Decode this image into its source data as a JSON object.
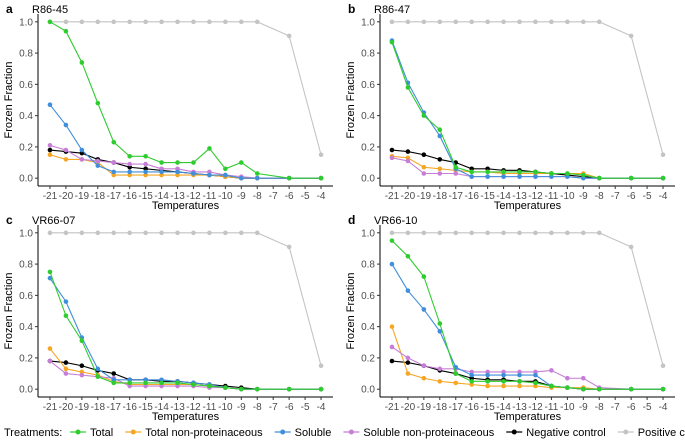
{
  "chart_data": {
    "type": "line",
    "xlabel": "Temperatures",
    "ylabel": "Frozen Fraction",
    "x": [
      -21,
      -20,
      -19,
      -18,
      -17,
      -16,
      -15,
      -14,
      -13,
      -12,
      -11,
      -10,
      -9,
      -8,
      -7,
      -6,
      -5,
      -4
    ],
    "x_tick_labels": [
      "-21",
      "-20",
      "-19",
      "-18",
      "-17",
      "-16",
      "-15",
      "-14",
      "-13",
      "-12",
      "-11",
      "-10",
      "-9",
      "-8",
      "-7",
      "-6",
      "-5",
      "-4"
    ],
    "y_ticks": [
      "0.0",
      "0.2",
      "0.4",
      "0.6",
      "0.8",
      "1.0"
    ],
    "ylim": [
      0,
      1
    ],
    "legend": {
      "title": "Treatments:",
      "placement": "bottom",
      "entries": [
        {
          "name": "Total",
          "color": "#2ecc2e"
        },
        {
          "name": "Total non-proteinaceous",
          "color": "#f5a623"
        },
        {
          "name": "Soluble",
          "color": "#3f8fdc"
        },
        {
          "name": "Soluble non-proteinaceous",
          "color": "#c77ed6"
        },
        {
          "name": "Negative control",
          "color": "#000000"
        },
        {
          "name": "Positive control",
          "color": "#c4c4c4"
        }
      ]
    },
    "panels": [
      {
        "letter": "a",
        "title": "R86-45",
        "series": [
          {
            "name": "Positive control",
            "x": [
              -21,
              -20,
              -19,
              -18,
              -17,
              -16,
              -15,
              -14,
              -13,
              -12,
              -11,
              -10,
              -9,
              -8,
              -6,
              -4
            ],
            "values": [
              1,
              1,
              1,
              1,
              1,
              1,
              1,
              1,
              1,
              1,
              1,
              1,
              1,
              1,
              0.91,
              0.15
            ]
          },
          {
            "name": "Negative control",
            "x": [
              -21,
              -20,
              -19,
              -18,
              -17,
              -16,
              -15,
              -14,
              -13,
              -12,
              -11,
              -10,
              -9,
              -8,
              -6,
              -4
            ],
            "values": [
              0.18,
              0.17,
              0.16,
              0.12,
              0.1,
              0.07,
              0.06,
              0.05,
              0.04,
              0.03,
              0.02,
              0.01,
              0,
              0,
              0,
              0
            ]
          },
          {
            "name": "Total non-proteinaceous",
            "x": [
              -21,
              -20,
              -19,
              -18,
              -17,
              -16,
              -15,
              -14,
              -13,
              -12,
              -11,
              -10,
              -9,
              -8,
              -6,
              -4
            ],
            "values": [
              0.15,
              0.12,
              0.12,
              0.1,
              0.02,
              0.02,
              0.02,
              0.02,
              0.02,
              0.02,
              0.02,
              0.01,
              0,
              0,
              0,
              0
            ]
          },
          {
            "name": "Soluble non-proteinaceous",
            "x": [
              -21,
              -20,
              -19,
              -18,
              -17,
              -16,
              -15,
              -14,
              -13,
              -12,
              -11,
              -10,
              -9,
              -8,
              -6,
              -4
            ],
            "values": [
              0.21,
              0.18,
              0.12,
              0.11,
              0.1,
              0.09,
              0.09,
              0.06,
              0.06,
              0.04,
              0.04,
              0.02,
              0.01,
              0,
              0,
              0
            ]
          },
          {
            "name": "Soluble",
            "x": [
              -21,
              -20,
              -19,
              -18,
              -17,
              -16,
              -15,
              -14,
              -13,
              -12,
              -11,
              -10,
              -9,
              -8,
              -6,
              -4
            ],
            "values": [
              0.47,
              0.34,
              0.18,
              0.08,
              0.04,
              0.04,
              0.04,
              0.04,
              0.04,
              0.03,
              0.02,
              0.02,
              0,
              0,
              0,
              0
            ]
          },
          {
            "name": "Total",
            "x": [
              -21,
              -20,
              -19,
              -18,
              -17,
              -16,
              -15,
              -14,
              -13,
              -12,
              -11,
              -10,
              -9,
              -8,
              -6,
              -4
            ],
            "values": [
              1.0,
              0.94,
              0.74,
              0.48,
              0.23,
              0.14,
              0.14,
              0.1,
              0.1,
              0.1,
              0.19,
              0.06,
              0.1,
              0.03,
              0,
              0
            ]
          }
        ]
      },
      {
        "letter": "b",
        "title": "R86-47",
        "series": [
          {
            "name": "Positive control",
            "x": [
              -21,
              -20,
              -19,
              -18,
              -17,
              -16,
              -15,
              -14,
              -13,
              -12,
              -11,
              -10,
              -9,
              -8,
              -6,
              -4
            ],
            "values": [
              1,
              1,
              1,
              1,
              1,
              1,
              1,
              1,
              1,
              1,
              1,
              1,
              1,
              1,
              0.91,
              0.15
            ]
          },
          {
            "name": "Negative control",
            "x": [
              -21,
              -20,
              -19,
              -18,
              -17,
              -16,
              -15,
              -14,
              -13,
              -12,
              -11,
              -10,
              -9,
              -8,
              -6,
              -4
            ],
            "values": [
              0.18,
              0.17,
              0.15,
              0.12,
              0.1,
              0.06,
              0.06,
              0.05,
              0.05,
              0.04,
              0.03,
              0.02,
              0.01,
              0,
              0,
              0
            ]
          },
          {
            "name": "Total non-proteinaceous",
            "x": [
              -21,
              -20,
              -19,
              -18,
              -17,
              -16,
              -15,
              -14,
              -13,
              -12,
              -11,
              -10,
              -9,
              -8,
              -6,
              -4
            ],
            "values": [
              0.14,
              0.13,
              0.07,
              0.06,
              0.05,
              0.04,
              0.04,
              0.03,
              0.03,
              0.03,
              0.03,
              0.03,
              0.03,
              0,
              0,
              0
            ]
          },
          {
            "name": "Soluble non-proteinaceous",
            "x": [
              -21,
              -20,
              -19,
              -18,
              -17,
              -16,
              -15,
              -14,
              -13,
              -12,
              -11,
              -10,
              -9,
              -8,
              -6,
              -4
            ],
            "values": [
              0.13,
              0.11,
              0.03,
              0.03,
              0.03,
              0.01,
              0.01,
              0.01,
              0.01,
              0.01,
              0.01,
              0.01,
              0,
              0,
              0,
              0
            ]
          },
          {
            "name": "Soluble",
            "x": [
              -21,
              -20,
              -19,
              -18,
              -17,
              -16,
              -15,
              -14,
              -13,
              -12,
              -11,
              -10,
              -9,
              -8,
              -6,
              -4
            ],
            "values": [
              0.88,
              0.61,
              0.42,
              0.27,
              0.06,
              0.01,
              0.01,
              0.01,
              0.01,
              0.01,
              0.01,
              0.01,
              0,
              0,
              0,
              0
            ]
          },
          {
            "name": "Total",
            "x": [
              -21,
              -20,
              -19,
              -18,
              -17,
              -16,
              -15,
              -14,
              -13,
              -12,
              -11,
              -10,
              -9,
              -8,
              -6,
              -4
            ],
            "values": [
              0.87,
              0.58,
              0.4,
              0.31,
              0.07,
              0.04,
              0.04,
              0.04,
              0.04,
              0.04,
              0.03,
              0.03,
              0.02,
              0,
              0,
              0
            ]
          }
        ]
      },
      {
        "letter": "c",
        "title": "VR66-07",
        "series": [
          {
            "name": "Positive control",
            "x": [
              -21,
              -20,
              -19,
              -18,
              -17,
              -16,
              -15,
              -14,
              -13,
              -12,
              -11,
              -10,
              -9,
              -8,
              -6,
              -4
            ],
            "values": [
              1,
              1,
              1,
              1,
              1,
              1,
              1,
              1,
              1,
              1,
              1,
              1,
              1,
              1,
              0.91,
              0.15
            ]
          },
          {
            "name": "Negative control",
            "x": [
              -21,
              -20,
              -19,
              -18,
              -17,
              -16,
              -15,
              -14,
              -13,
              -12,
              -11,
              -10,
              -9,
              -8,
              -6,
              -4
            ],
            "values": [
              0.18,
              0.17,
              0.15,
              0.12,
              0.1,
              0.06,
              0.06,
              0.05,
              0.05,
              0.04,
              0.03,
              0.02,
              0.01,
              0,
              0,
              0
            ]
          },
          {
            "name": "Total non-proteinaceous",
            "x": [
              -21,
              -20,
              -19,
              -18,
              -17,
              -16,
              -15,
              -14,
              -13,
              -12,
              -11,
              -10,
              -9,
              -8,
              -6,
              -4
            ],
            "values": [
              0.26,
              0.13,
              0.11,
              0.09,
              0.05,
              0.03,
              0.03,
              0.03,
              0.03,
              0.03,
              0.02,
              0.01,
              0,
              0,
              0,
              0
            ]
          },
          {
            "name": "Soluble non-proteinaceous",
            "x": [
              -21,
              -20,
              -19,
              -18,
              -17,
              -16,
              -15,
              -14,
              -13,
              -12,
              -11,
              -10,
              -9,
              -8,
              -6,
              -4
            ],
            "values": [
              0.18,
              0.1,
              0.09,
              0.08,
              0.07,
              0.02,
              0.02,
              0.02,
              0.02,
              0.02,
              0.01,
              0.01,
              0,
              0,
              0,
              0
            ]
          },
          {
            "name": "Soluble",
            "x": [
              -21,
              -20,
              -19,
              -18,
              -17,
              -16,
              -15,
              -14,
              -13,
              -12,
              -11,
              -10,
              -9,
              -8,
              -6,
              -4
            ],
            "values": [
              0.71,
              0.56,
              0.33,
              0.13,
              0.06,
              0.06,
              0.06,
              0.06,
              0.05,
              0.04,
              0.03,
              0.01,
              0,
              0,
              0,
              0
            ]
          },
          {
            "name": "Total",
            "x": [
              -21,
              -20,
              -19,
              -18,
              -17,
              -16,
              -15,
              -14,
              -13,
              -12,
              -11,
              -10,
              -9,
              -8,
              -6,
              -4
            ],
            "values": [
              0.75,
              0.47,
              0.31,
              0.08,
              0.04,
              0.04,
              0.04,
              0.04,
              0.04,
              0.03,
              0.02,
              0.01,
              0,
              0,
              0,
              0
            ]
          }
        ]
      },
      {
        "letter": "d",
        "title": "VR66-10",
        "series": [
          {
            "name": "Positive control",
            "x": [
              -21,
              -20,
              -19,
              -18,
              -17,
              -16,
              -15,
              -14,
              -13,
              -12,
              -11,
              -10,
              -9,
              -8,
              -6,
              -4
            ],
            "values": [
              1,
              1,
              1,
              1,
              1,
              1,
              1,
              1,
              1,
              1,
              1,
              1,
              1,
              1,
              0.91,
              0.15
            ]
          },
          {
            "name": "Negative control",
            "x": [
              -21,
              -20,
              -19,
              -18,
              -17,
              -16,
              -15,
              -14,
              -13,
              -12,
              -11,
              -10,
              -9,
              -8,
              -6,
              -4
            ],
            "values": [
              0.18,
              0.17,
              0.15,
              0.12,
              0.1,
              0.07,
              0.06,
              0.06,
              0.05,
              0.05,
              0.02,
              0.01,
              0,
              0,
              0,
              0
            ]
          },
          {
            "name": "Total non-proteinaceous",
            "x": [
              -21,
              -20,
              -19,
              -18,
              -17,
              -16,
              -15,
              -14,
              -13,
              -12,
              -11,
              -10,
              -9,
              -8,
              -6,
              -4
            ],
            "values": [
              0.4,
              0.1,
              0.07,
              0.05,
              0.04,
              0.03,
              0.02,
              0.02,
              0.02,
              0.02,
              0.01,
              0.01,
              0.01,
              0,
              0,
              0
            ]
          },
          {
            "name": "Soluble non-proteinaceous",
            "x": [
              -21,
              -20,
              -19,
              -18,
              -17,
              -16,
              -15,
              -14,
              -13,
              -12,
              -11,
              -10,
              -9,
              -8,
              -6,
              -4
            ],
            "values": [
              0.27,
              0.2,
              0.15,
              0.13,
              0.13,
              0.11,
              0.11,
              0.11,
              0.11,
              0.11,
              0.12,
              0.07,
              0.07,
              0.01,
              0,
              0
            ]
          },
          {
            "name": "Soluble",
            "x": [
              -21,
              -20,
              -19,
              -18,
              -17,
              -16,
              -15,
              -14,
              -13,
              -12,
              -11,
              -10,
              -9,
              -8,
              -6,
              -4
            ],
            "values": [
              0.8,
              0.63,
              0.51,
              0.37,
              0.14,
              0.09,
              0.09,
              0.09,
              0.09,
              0.09,
              0.02,
              0.01,
              0,
              0,
              0,
              0
            ]
          },
          {
            "name": "Total",
            "x": [
              -21,
              -20,
              -19,
              -18,
              -17,
              -16,
              -15,
              -14,
              -13,
              -12,
              -11,
              -10,
              -9,
              -8,
              -6,
              -4
            ],
            "values": [
              0.95,
              0.85,
              0.72,
              0.42,
              0.1,
              0.05,
              0.05,
              0.05,
              0.05,
              0.04,
              0.02,
              0.01,
              0,
              0,
              0,
              0
            ]
          }
        ]
      }
    ]
  }
}
